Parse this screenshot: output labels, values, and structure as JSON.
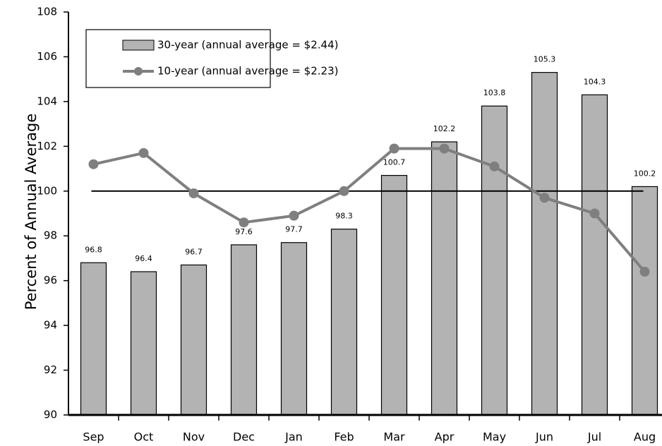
{
  "chart_data": {
    "type": "bar_line",
    "y_label": "Percent of Annual Average",
    "categories": [
      "Sep",
      "Oct",
      "Nov",
      "Dec",
      "Jan",
      "Feb",
      "Mar",
      "Apr",
      "May",
      "Jun",
      "Jul",
      "Aug"
    ],
    "series": [
      {
        "name": "30-year (annual average = $2.44)",
        "type": "bar",
        "color": "#b3b3b3",
        "values": [
          96.8,
          96.4,
          96.7,
          97.6,
          97.7,
          98.3,
          100.7,
          102.2,
          103.8,
          105.3,
          104.3,
          100.2
        ]
      },
      {
        "name": "10-year (annual average = $2.23)",
        "type": "line",
        "color": "#7f7f7f",
        "values": [
          101.2,
          101.7,
          99.9,
          98.6,
          98.9,
          100.0,
          101.9,
          101.9,
          101.1,
          99.7,
          99.0,
          96.4
        ]
      }
    ],
    "reference_line": 100,
    "ylim": [
      90,
      108
    ],
    "yticks": [
      90,
      92,
      94,
      96,
      98,
      100,
      102,
      104,
      106,
      108
    ],
    "legend": "upper left"
  }
}
